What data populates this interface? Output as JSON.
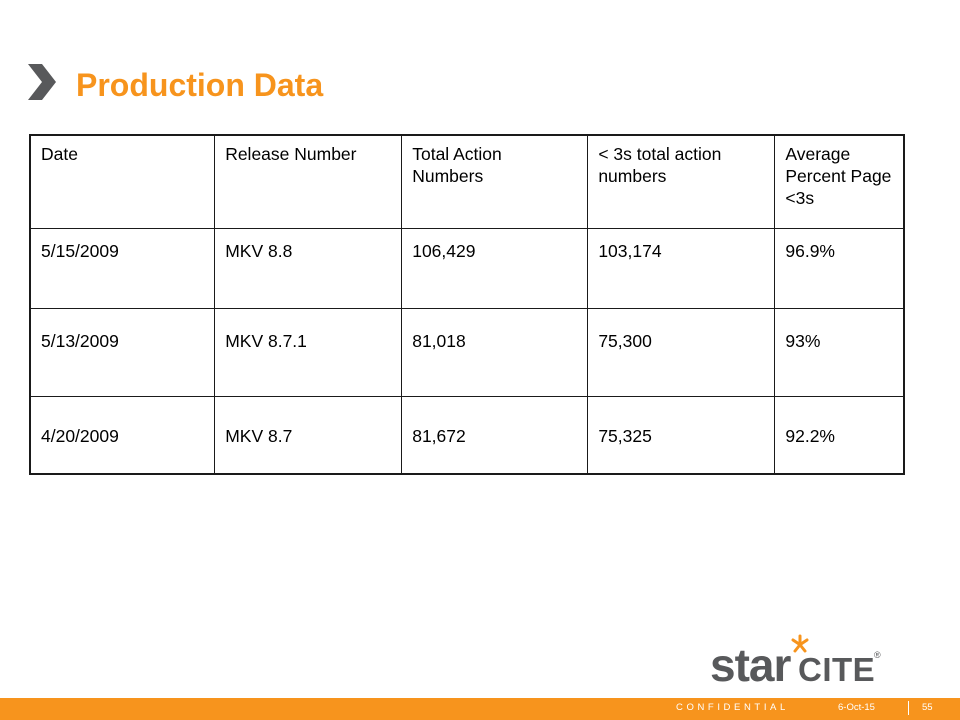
{
  "slide": {
    "title": "Production Data",
    "accent_color": "#f7941d",
    "chevron_color": "#58595b"
  },
  "table": {
    "headers": [
      "Date",
      "Release Number",
      "Total Action Numbers",
      "< 3s total action numbers",
      "Average Percent Page <3s"
    ],
    "rows": [
      [
        "5/15/2009",
        "MKV 8.8",
        "106,429",
        "103,174",
        "96.9%"
      ],
      [
        "5/13/2009",
        "MKV 8.7.1",
        "81,018",
        "75,300",
        "93%"
      ],
      [
        "4/20/2009",
        "MKV 8.7",
        "81,672",
        "75,325",
        "92.2%"
      ]
    ]
  },
  "logo": {
    "star_text": "star",
    "cite_text": "CITE",
    "registered_mark": "®",
    "asterisk_icon": "orange-asterisk-icon"
  },
  "footer": {
    "confidential": "CONFIDENTIAL",
    "date": "6-Oct-15",
    "page_number": "55"
  }
}
